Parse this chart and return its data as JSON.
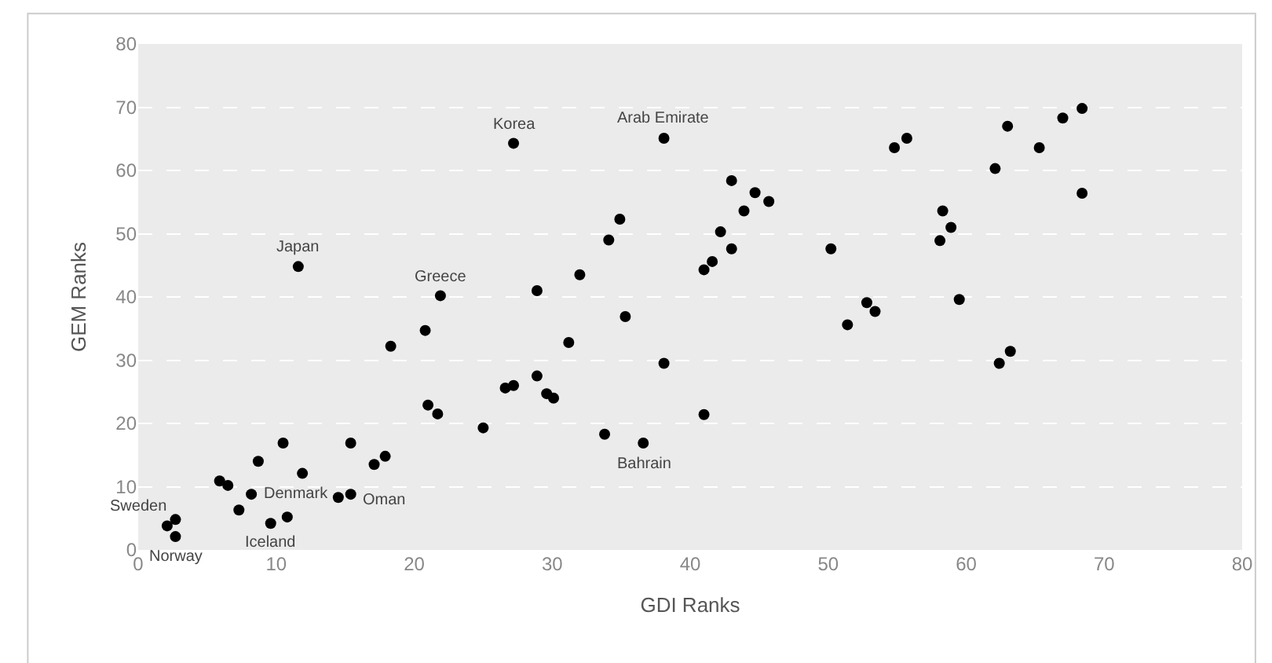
{
  "chart_data": {
    "type": "scatter",
    "xlabel": "GDI Ranks",
    "ylabel": "GEM Ranks",
    "x": [
      2.1,
      2.7,
      2.7,
      5.9,
      6.5,
      7.3,
      8.2,
      8.7,
      9.6,
      10.5,
      10.8,
      11.6,
      11.9,
      14.5,
      15.4,
      15.4,
      17.1,
      17.9,
      18.3,
      20.8,
      21.0,
      21.7,
      21.9,
      25.0,
      27.2,
      26.6,
      27.2,
      28.9,
      28.9,
      29.6,
      30.1,
      31.2,
      32.0,
      33.8,
      34.1,
      34.9,
      35.3,
      36.6,
      38.1,
      38.1,
      41.0,
      41.0,
      41.6,
      42.2,
      43.0,
      43.0,
      43.9,
      44.7,
      45.7,
      50.2,
      51.4,
      52.8,
      53.4,
      54.8,
      55.7,
      58.1,
      58.3,
      58.9,
      59.5,
      62.1,
      62.4,
      63.0,
      63.2,
      65.3,
      67.0,
      68.4,
      68.4
    ],
    "series": [
      {
        "color": "#000000",
        "values": [
          3.8,
          4.8,
          2.1,
          10.9,
          10.2,
          6.3,
          8.8,
          14.0,
          4.2,
          16.9,
          5.2,
          44.8,
          12.1,
          8.3,
          8.8,
          16.9,
          13.5,
          14.8,
          32.2,
          34.7,
          22.9,
          21.5,
          40.2,
          19.3,
          64.3,
          25.6,
          26.0,
          41.0,
          27.5,
          24.7,
          24.0,
          32.8,
          43.5,
          18.3,
          49.0,
          52.3,
          36.9,
          16.9,
          65.1,
          29.5,
          21.4,
          44.3,
          45.6,
          50.3,
          47.6,
          58.4,
          53.6,
          56.5,
          55.1,
          47.6,
          35.6,
          39.1,
          37.7,
          63.6,
          65.1,
          48.9,
          53.6,
          51.0,
          39.6,
          60.3,
          29.5,
          67.0,
          31.4,
          63.6,
          68.3,
          69.8,
          56.4
        ]
      }
    ],
    "xlim": [
      0,
      80
    ],
    "xticks": [
      0,
      10,
      20,
      30,
      40,
      50,
      60,
      70,
      80
    ],
    "ylim": [
      0,
      80
    ],
    "yticks": [
      0,
      10,
      20,
      30,
      40,
      50,
      60,
      70,
      80
    ],
    "grid": "y",
    "marker": "circle",
    "annotations": [
      {
        "text": "Norway",
        "x": 2.7,
        "y": 2.1
      },
      {
        "text": "Sweden",
        "x": 2.7,
        "y": 4.8
      },
      {
        "text": "Denmark",
        "x": 8.2,
        "y": 8.8
      },
      {
        "text": "Iceland",
        "x": 9.6,
        "y": 4.2
      },
      {
        "text": "Oman",
        "x": 15.4,
        "y": 8.8
      },
      {
        "text": "Japan",
        "x": 11.6,
        "y": 44.8
      },
      {
        "text": "Greece",
        "x": 21.9,
        "y": 40.2
      },
      {
        "text": "Korea",
        "x": 27.2,
        "y": 64.3
      },
      {
        "text": "Arab Emirate",
        "x": 38.1,
        "y": 65.1
      },
      {
        "text": "Bahrain",
        "x": 36.6,
        "y": 16.9
      }
    ]
  }
}
